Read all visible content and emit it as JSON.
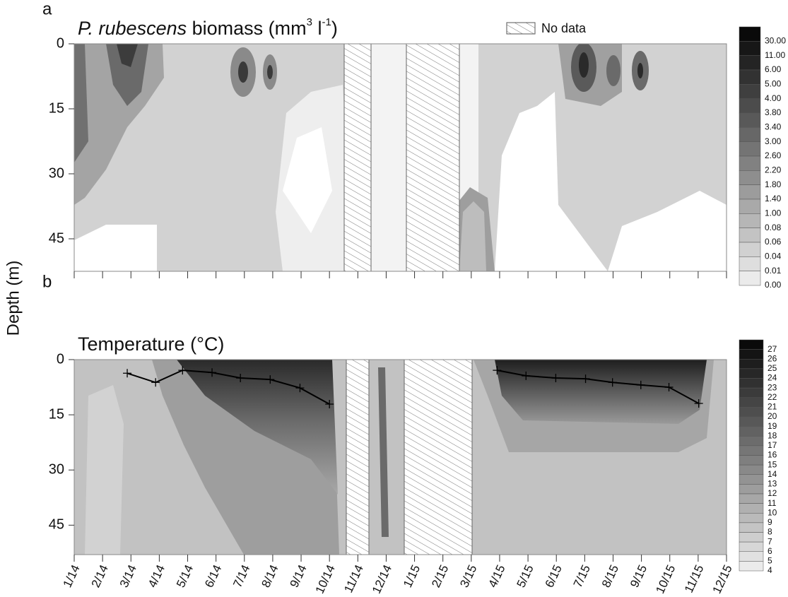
{
  "chart_data": [
    {
      "type": "contour",
      "panel_label": "a",
      "title_species": "P. rubescens",
      "title_rest": " biomass (mm",
      "title_sup1": "3",
      "title_mid": " l",
      "title_sup2": "-1",
      "title_end": ")",
      "legend_label": "No data",
      "ylabel": "Depth (m)",
      "xlim": [
        0,
        23
      ],
      "ylim": [
        0,
        52.5
      ],
      "yticks": [
        0,
        15,
        30,
        45
      ],
      "colorbar_levels": [
        {
          "value": 30,
          "label": "30.00"
        },
        {
          "value": 11,
          "label": "11.00"
        },
        {
          "value": 6,
          "label": "6.00"
        },
        {
          "value": 5,
          "label": "5.00"
        },
        {
          "value": 4,
          "label": "4.00"
        },
        {
          "value": 3.8,
          "label": "3.80"
        },
        {
          "value": 3.4,
          "label": "3.40"
        },
        {
          "value": 3,
          "label": "3.00"
        },
        {
          "value": 2.6,
          "label": "2.60"
        },
        {
          "value": 2.2,
          "label": "2.20"
        },
        {
          "value": 1.8,
          "label": "1.80"
        },
        {
          "value": 1.4,
          "label": "1.40"
        },
        {
          "value": 1,
          "label": "1.00"
        },
        {
          "value": 0.08,
          "label": "0.08"
        },
        {
          "value": 0.06,
          "label": "0.06"
        },
        {
          "value": 0.04,
          "label": "0.04"
        },
        {
          "value": 0.01,
          "label": "0.01"
        },
        {
          "value": 0,
          "label": "0.00"
        }
      ]
    },
    {
      "type": "contour",
      "panel_label": "b",
      "title": "Temperature (°C)",
      "xlim": [
        0,
        23
      ],
      "ylim": [
        0,
        53
      ],
      "yticks": [
        0,
        15,
        30,
        45
      ],
      "xticks": [
        {
          "value": 0,
          "label": "1/14"
        },
        {
          "value": 1,
          "label": "2/14"
        },
        {
          "value": 2,
          "label": "3/14"
        },
        {
          "value": 3,
          "label": "4/14"
        },
        {
          "value": 4,
          "label": "5/14"
        },
        {
          "value": 5,
          "label": "6/14"
        },
        {
          "value": 6,
          "label": "7/14"
        },
        {
          "value": 7,
          "label": "8/14"
        },
        {
          "value": 8,
          "label": "9/14"
        },
        {
          "value": 9,
          "label": "10/14"
        },
        {
          "value": 10,
          "label": "11/14"
        },
        {
          "value": 11,
          "label": "12/14"
        },
        {
          "value": 12,
          "label": "1/15"
        },
        {
          "value": 13,
          "label": "2/15"
        },
        {
          "value": 14,
          "label": "3/15"
        },
        {
          "value": 15,
          "label": "4/15"
        },
        {
          "value": 16,
          "label": "5/15"
        },
        {
          "value": 17,
          "label": "6/15"
        },
        {
          "value": 18,
          "label": "7/15"
        },
        {
          "value": 19,
          "label": "8/15"
        },
        {
          "value": 20,
          "label": "9/15"
        },
        {
          "value": 21,
          "label": "10/15"
        },
        {
          "value": 22,
          "label": "11/15"
        },
        {
          "value": 23,
          "label": "12/15"
        }
      ],
      "colorbar_levels": [
        27,
        26,
        25,
        24,
        23,
        22,
        21,
        20,
        19,
        18,
        17,
        16,
        15,
        14,
        13,
        12,
        11,
        10,
        9,
        8,
        7,
        6,
        5,
        4
      ],
      "series": [
        {
          "color": "#000000",
          "x": [
            1.87,
            2.87,
            3.82,
            4.86,
            5.86,
            6.91,
            7.96,
            9.0,
            null,
            14.91,
            15.93,
            16.98,
            18.03,
            18.98,
            19.98,
            20.97,
            22.02
          ],
          "values": [
            3.7,
            6.2,
            2.9,
            3.5,
            5.0,
            5.4,
            7.7,
            12.1,
            null,
            2.9,
            4.4,
            5.0,
            5.2,
            6.2,
            6.9,
            7.5,
            11.9
          ]
        }
      ]
    }
  ]
}
